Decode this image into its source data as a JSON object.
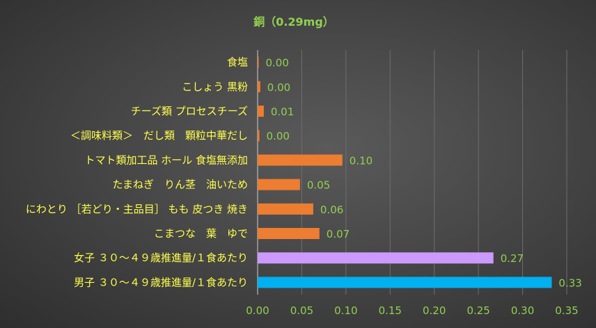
{
  "chart_data": {
    "type": "bar",
    "orientation": "horizontal",
    "title": "銅（0.29mg）",
    "categories": [
      "食塩",
      "こしょう 黒粉",
      "チーズ類 プロセスチーズ",
      "＜調味料類＞　だし類　顆粒中華だし",
      "トマト類加工品 ホール 食塩無添加",
      "たまねぎ　りん茎　油いため",
      "にわとり ［若どり・主品目］ もも 皮つき 焼き",
      "こまつな　葉　ゆで",
      "女子 ３０～４９歳推進量/１食あたり",
      "男子 ３０～４９歳推進量/１食あたり"
    ],
    "values": [
      0.001,
      0.003,
      0.007,
      0.002,
      0.096,
      0.048,
      0.063,
      0.07,
      0.267,
      0.333
    ],
    "value_labels": [
      "0.00",
      "0.00",
      "0.01",
      "0.00",
      "0.10",
      "0.05",
      "0.06",
      "0.07",
      "0.27",
      "0.33"
    ],
    "bar_colors": [
      "#ed7d31",
      "#ed7d31",
      "#ed7d31",
      "#ed7d31",
      "#ed7d31",
      "#ed7d31",
      "#ed7d31",
      "#ed7d31",
      "#cc99ff",
      "#00b0f0"
    ],
    "xlim": [
      0,
      0.35
    ],
    "x_ticks": [
      "0.00",
      "0.05",
      "0.10",
      "0.15",
      "0.20",
      "0.25",
      "0.30",
      "0.35"
    ],
    "grid": true,
    "legend": "none",
    "colors": {
      "title": "#92d050",
      "category_labels": "#ffff4d",
      "value_labels": "#92d050",
      "gridlines": "#6e6e6e"
    }
  }
}
